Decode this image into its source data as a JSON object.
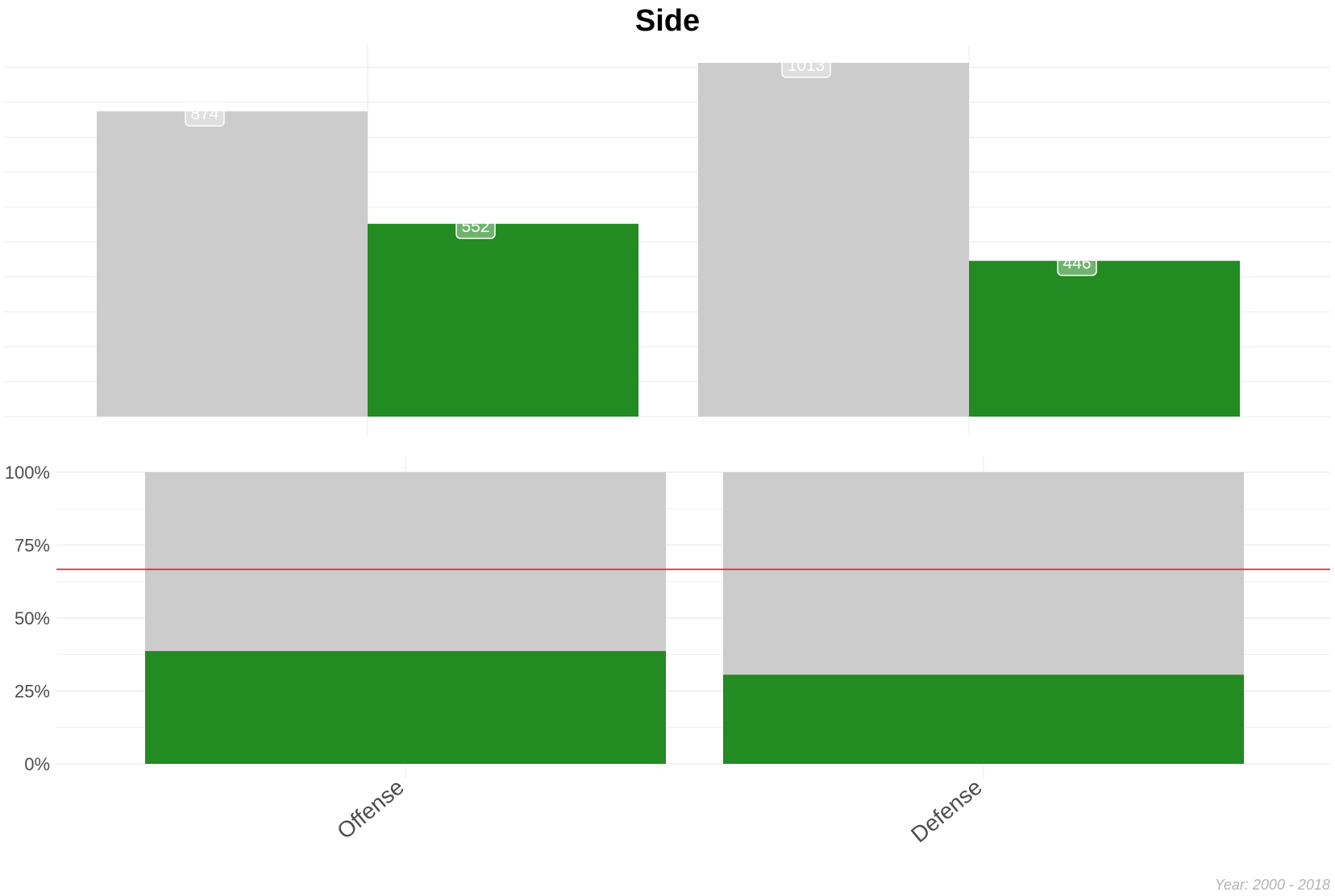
{
  "chart_data": [
    {
      "type": "bar",
      "panel": "top",
      "title": "Side",
      "categories": [
        "Offense",
        "Defense"
      ],
      "series": [
        {
          "values": [
            874,
            1013
          ],
          "color": "#cccccc"
        },
        {
          "values": [
            552,
            446
          ],
          "color": "#228b22"
        }
      ],
      "data_labels": [
        [
          "874",
          "1013"
        ],
        [
          "552",
          "446"
        ]
      ],
      "y_axis_shown": false,
      "grid": true
    },
    {
      "type": "bar",
      "panel": "bottom",
      "stacked": true,
      "categories": [
        "Offense",
        "Defense"
      ],
      "y_ticks": [
        "0%",
        "25%",
        "50%",
        "75%",
        "100%"
      ],
      "ylim": [
        0,
        1
      ],
      "series": [
        {
          "values": [
            0.387,
            0.306
          ],
          "color": "#228b22"
        },
        {
          "values": [
            0.613,
            0.694
          ],
          "color": "#cccccc"
        }
      ],
      "reference_line": {
        "y": 0.667,
        "color": "#e41a1c"
      },
      "grid": true
    }
  ],
  "caption": "Year: 2000 - 2018"
}
